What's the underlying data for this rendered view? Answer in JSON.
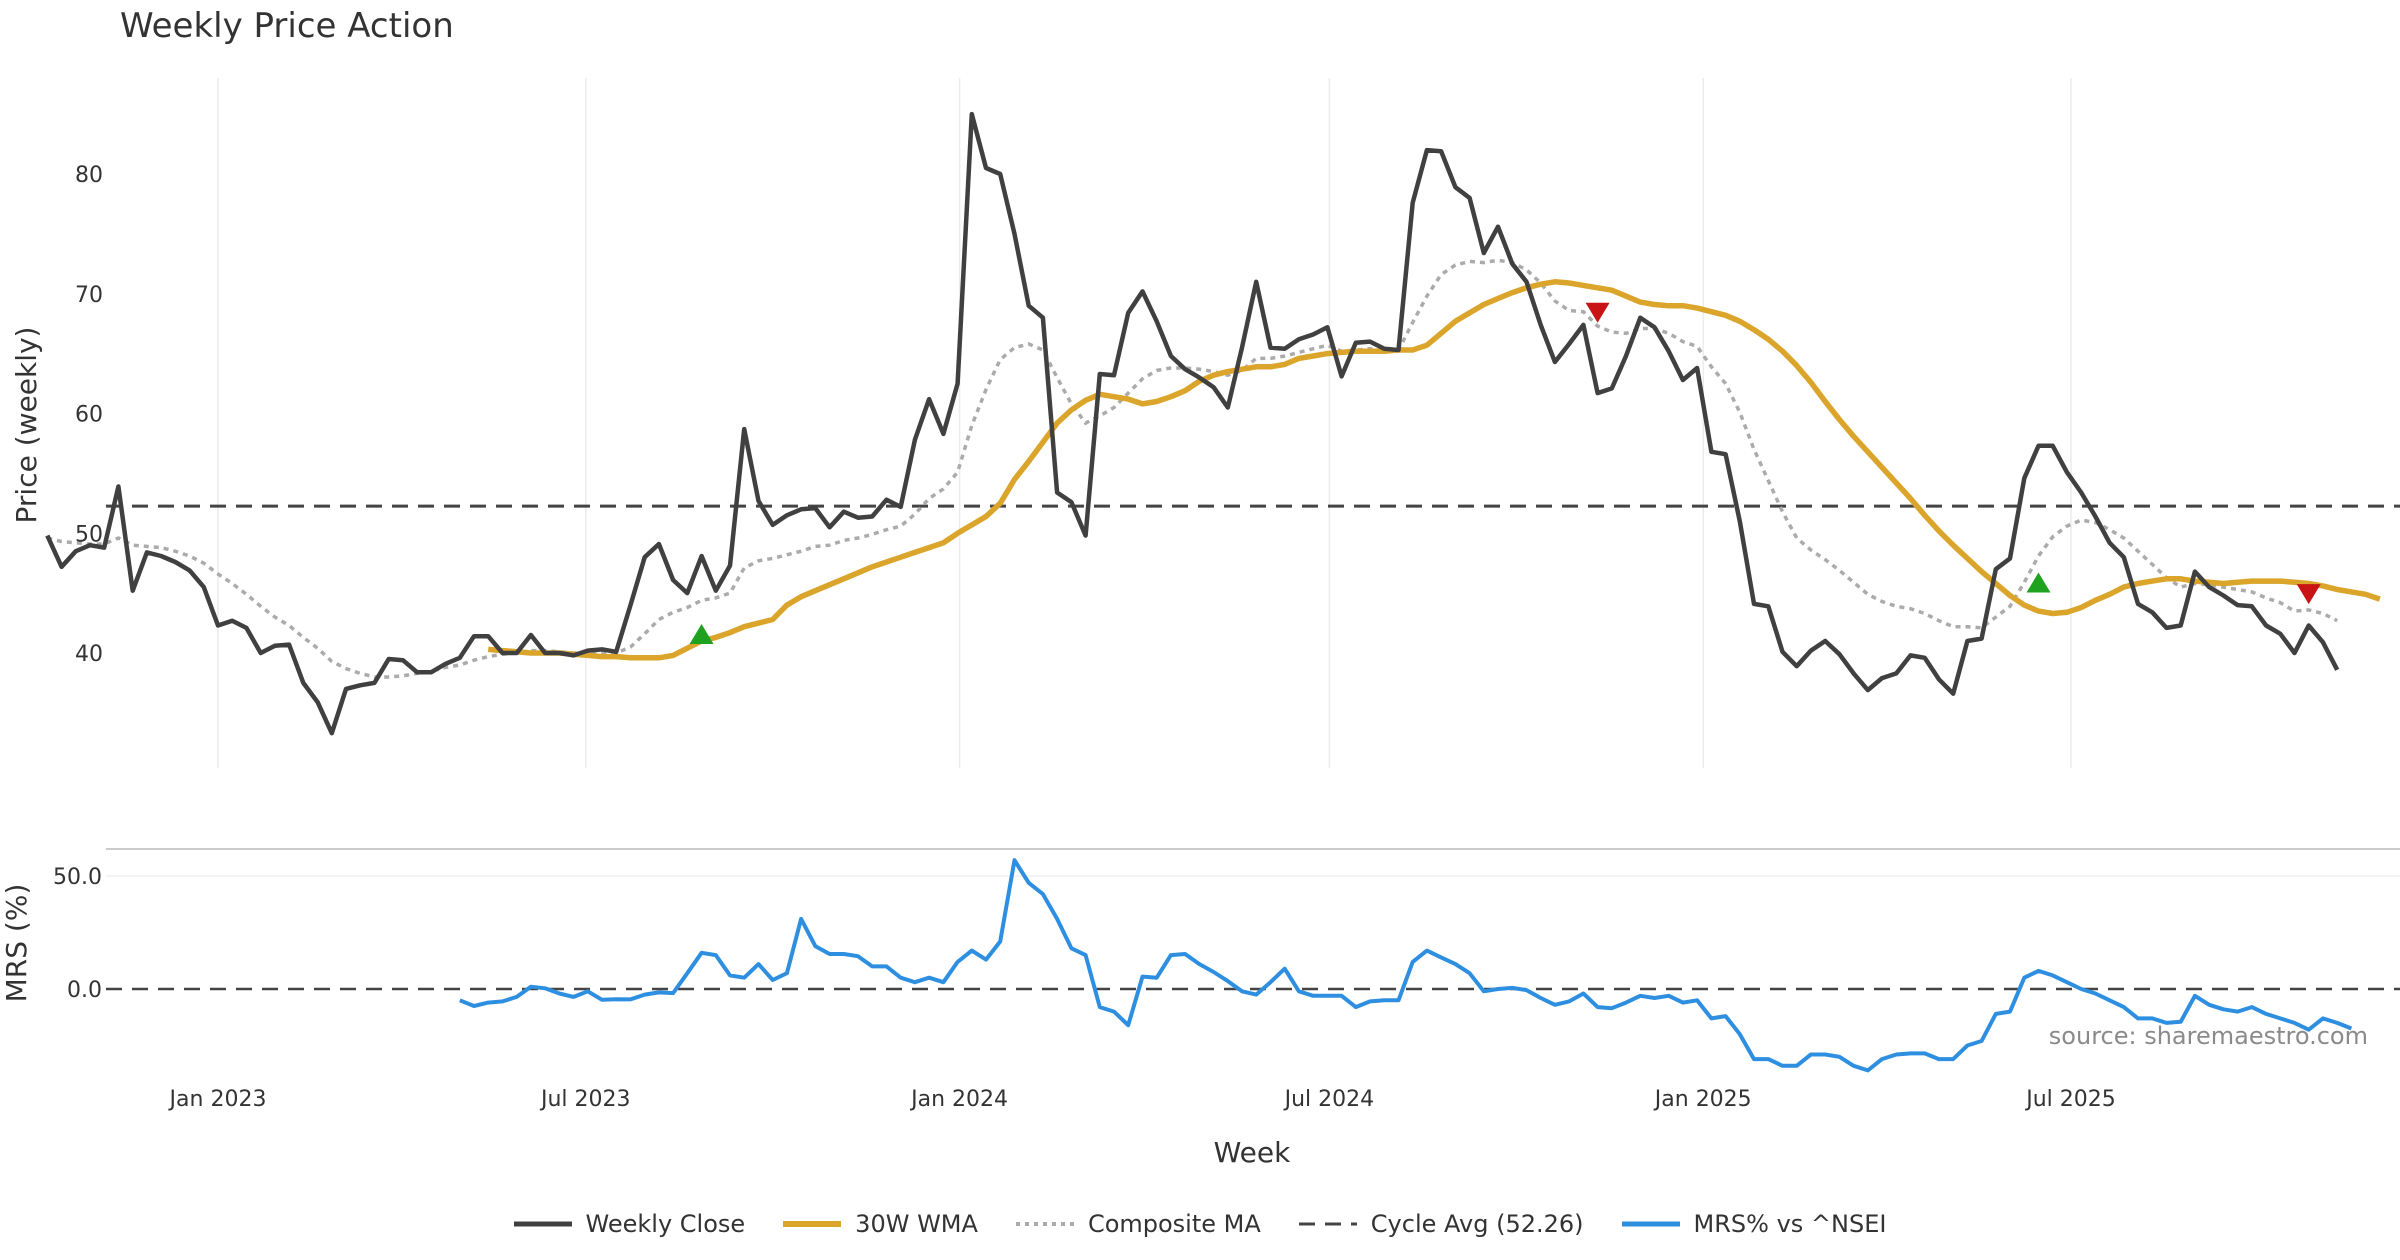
{
  "chart_data": [
    {
      "type": "line",
      "title": "Weekly Price Action",
      "xlabel": "Week",
      "ylabel": "Price (weekly)",
      "x_ticks": [
        "Jan 2023",
        "Jul 2023",
        "Jan 2024",
        "Jul 2024",
        "Jan 2025",
        "Jul 2025"
      ],
      "y_ticks": [
        40,
        50,
        60,
        70,
        80
      ],
      "ylim": [
        29,
        89
      ],
      "grid": true,
      "cycle_average": 52.26,
      "series": [
        {
          "name": "Weekly Close",
          "color": "#404040",
          "start": "2022-10-09",
          "values": [
            49.8,
            47.2,
            48.5,
            49.0,
            48.8,
            53.9,
            45.2,
            48.4,
            48.1,
            47.6,
            46.9,
            45.5,
            42.3,
            42.7,
            42.1,
            40.0,
            40.6,
            40.7,
            37.5,
            35.9,
            33.3,
            37.0,
            37.3,
            37.5,
            39.5,
            39.4,
            38.4,
            38.4,
            39.1,
            39.6,
            41.4,
            41.4,
            40.0,
            40.0,
            41.5,
            40.0,
            40.0,
            39.8,
            40.2,
            40.3,
            40.1,
            44.0,
            48.0,
            49.1,
            46.1,
            45.0,
            48.1,
            45.2,
            47.3,
            58.7,
            52.7,
            50.7,
            51.5,
            52.0,
            52.1,
            50.5,
            51.8,
            51.3,
            51.4,
            52.8,
            52.2,
            57.8,
            61.2,
            58.3,
            62.5,
            85.0,
            80.5,
            80.0,
            75.0,
            69.0,
            68.0,
            53.4,
            52.6,
            49.8,
            63.3,
            63.2,
            68.4,
            70.2,
            67.7,
            64.8,
            63.7,
            63.0,
            62.2,
            60.5,
            65.5,
            71.0,
            65.5,
            65.4,
            66.2,
            66.6,
            67.2,
            63.1,
            65.9,
            66.0,
            65.4,
            65.3,
            77.6,
            82.0,
            81.9,
            78.9,
            78.0,
            73.4,
            75.6,
            72.5,
            71.0,
            67.4,
            64.3,
            65.8,
            67.4,
            61.7,
            62.1,
            64.8,
            68.0,
            67.2,
            65.2,
            62.8,
            63.8,
            56.8,
            56.6,
            51.0,
            44.1,
            43.9,
            40.1,
            38.9,
            40.2,
            41.0,
            39.9,
            38.3,
            36.9,
            37.9,
            38.3,
            39.8,
            39.6,
            37.8,
            36.6,
            41.0,
            41.2,
            47.0,
            47.9,
            54.6,
            57.3,
            57.3,
            55.1,
            53.4,
            51.4,
            49.2,
            48.0,
            44.1,
            43.4,
            42.1,
            42.3,
            46.8,
            45.5,
            44.8,
            44.0,
            43.9,
            42.3,
            41.6,
            40.0,
            42.3,
            40.9,
            38.6
          ]
        },
        {
          "name": "30W WMA",
          "color": "#DAA52A",
          "start": "2023-05-14",
          "values": [
            40.3,
            40.2,
            40.1,
            40.0,
            40.0,
            40.0,
            39.9,
            39.8,
            39.7,
            39.7,
            39.6,
            39.6,
            39.6,
            39.8,
            40.4,
            41.0,
            41.3,
            41.7,
            42.2,
            42.5,
            42.8,
            44.0,
            44.7,
            45.2,
            45.7,
            46.2,
            46.7,
            47.2,
            47.6,
            48.0,
            48.4,
            48.8,
            49.2,
            50.0,
            50.7,
            51.4,
            52.5,
            54.5,
            56.0,
            57.6,
            59.2,
            60.3,
            61.1,
            61.6,
            61.4,
            61.2,
            60.8,
            61.0,
            61.4,
            61.9,
            62.7,
            63.2,
            63.5,
            63.7,
            63.9,
            63.9,
            64.1,
            64.6,
            64.8,
            65.0,
            65.1,
            65.2,
            65.2,
            65.2,
            65.3,
            65.3,
            65.7,
            66.7,
            67.7,
            68.4,
            69.1,
            69.6,
            70.1,
            70.5,
            70.8,
            71.0,
            70.9,
            70.7,
            70.5,
            70.3,
            69.8,
            69.3,
            69.1,
            69.0,
            69.0,
            68.8,
            68.5,
            68.2,
            67.7,
            67.0,
            66.2,
            65.2,
            64.0,
            62.6,
            61.0,
            59.5,
            58.1,
            56.8,
            55.5,
            54.2,
            52.9,
            51.5,
            50.2,
            49.0,
            47.9,
            46.8,
            45.8,
            44.8,
            44.0,
            43.5,
            43.3,
            43.4,
            43.8,
            44.4,
            44.9,
            45.5,
            45.8,
            46.0,
            46.2,
            46.2,
            46.0,
            45.9,
            45.8,
            45.9,
            46.0,
            46.0,
            46.0,
            45.9,
            45.8,
            45.6,
            45.3,
            45.1,
            44.9,
            44.5
          ]
        },
        {
          "name": "Composite MA",
          "color": "#ABABAB",
          "start": "2022-10-09",
          "values": [
            49.6,
            49.3,
            49.2,
            49.1,
            49.1,
            49.6,
            49.0,
            48.9,
            48.8,
            48.5,
            48.1,
            47.5,
            46.6,
            45.8,
            44.9,
            43.9,
            43.0,
            42.3,
            41.3,
            40.4,
            39.3,
            38.7,
            38.3,
            38.0,
            38.0,
            38.1,
            38.3,
            38.5,
            38.8,
            39.0,
            39.4,
            39.7,
            39.9,
            40.0,
            40.2,
            40.2,
            40.1,
            40.0,
            40.0,
            40.0,
            40.0,
            40.5,
            41.6,
            42.8,
            43.4,
            43.8,
            44.4,
            44.6,
            45.0,
            47.1,
            47.7,
            47.9,
            48.2,
            48.5,
            48.9,
            49.0,
            49.4,
            49.6,
            49.9,
            50.3,
            50.6,
            51.6,
            52.9,
            53.7,
            55.1,
            59.0,
            62.0,
            64.5,
            65.5,
            65.8,
            65.3,
            63.0,
            60.8,
            59.2,
            59.8,
            60.5,
            61.7,
            62.9,
            63.6,
            63.8,
            63.8,
            63.7,
            63.5,
            63.2,
            63.6,
            64.6,
            64.6,
            64.8,
            65.1,
            65.4,
            65.7,
            65.2,
            65.3,
            65.4,
            65.3,
            65.3,
            67.6,
            69.8,
            71.6,
            72.4,
            72.7,
            72.6,
            72.8,
            72.6,
            72.0,
            70.9,
            69.4,
            68.6,
            68.5,
            67.3,
            66.8,
            66.7,
            67.1,
            67.1,
            66.7,
            66.0,
            65.6,
            63.9,
            62.5,
            60.1,
            57.0,
            54.4,
            51.8,
            49.6,
            48.6,
            47.8,
            46.9,
            45.9,
            44.9,
            44.3,
            43.9,
            43.7,
            43.3,
            42.7,
            42.2,
            42.2,
            42.1,
            43.0,
            43.9,
            45.9,
            48.1,
            49.7,
            50.6,
            51.1,
            50.9,
            50.3,
            49.6,
            48.5,
            47.4,
            46.3,
            45.5,
            45.8,
            45.7,
            45.5,
            45.3,
            45.1,
            44.6,
            44.2,
            43.5,
            43.6,
            43.3,
            42.7
          ]
        }
      ],
      "signals": [
        {
          "type": "buy",
          "week": "2023-08-27",
          "value": 41.5,
          "color": "#1FA21F"
        },
        {
          "type": "sell",
          "week": "2024-11-10",
          "value": 68.5,
          "color": "#C81414"
        },
        {
          "type": "buy",
          "week": "2025-06-15",
          "value": 45.8,
          "color": "#1FA21F"
        },
        {
          "type": "sell",
          "week": "2025-10-26",
          "value": 45.0,
          "color": "#C81414"
        }
      ]
    },
    {
      "type": "line",
      "ylabel": "MRS (%)",
      "y_ticks": [
        "50.0",
        "0.0"
      ],
      "ylim": [
        -50,
        60
      ],
      "baseline": 0,
      "series": [
        {
          "name": "MRS% vs ^NSEI",
          "color": "#2E8FE0",
          "start": "2023-04-30",
          "values": [
            -5,
            -7.5,
            -6,
            -5.5,
            -3.5,
            1,
            0.3,
            -2,
            -3.5,
            -1,
            -4.8,
            -4.5,
            -4.6,
            -2.5,
            -1.5,
            -1.8,
            7,
            16,
            15,
            6,
            5,
            11,
            4,
            7,
            31,
            19,
            15.5,
            15.5,
            14.5,
            10,
            10,
            5,
            3,
            5,
            3,
            12,
            17,
            13,
            21,
            57,
            47,
            42,
            31,
            18,
            15,
            -8,
            -10,
            -16,
            5.5,
            5,
            15,
            15.5,
            11,
            7.5,
            3.5,
            -1,
            -2.5,
            3,
            9,
            -1,
            -3,
            -3,
            -3,
            -8,
            -5.5,
            -5,
            -5,
            12,
            17,
            14,
            11,
            7,
            -1,
            0,
            0.5,
            -0.5,
            -4,
            -7,
            -5.5,
            -2,
            -8,
            -8.5,
            -6,
            -3,
            -4,
            -3,
            -6,
            -5,
            -13,
            -12,
            -20,
            -31,
            -31,
            -34,
            -34,
            -29,
            -29,
            -30,
            -34,
            -36,
            -31,
            -29,
            -28.5,
            -28.5,
            -31,
            -31,
            -25,
            -23,
            -11,
            -10,
            5,
            8,
            6,
            3,
            0,
            -2,
            -5,
            -8,
            -13,
            -13,
            -15,
            -14.5,
            -3,
            -7,
            -9,
            -10,
            -8,
            -11,
            -13,
            -15,
            -18,
            -13,
            -15,
            -17.5
          ]
        }
      ],
      "annotation": "source: sharemaestro.com"
    }
  ]
}
